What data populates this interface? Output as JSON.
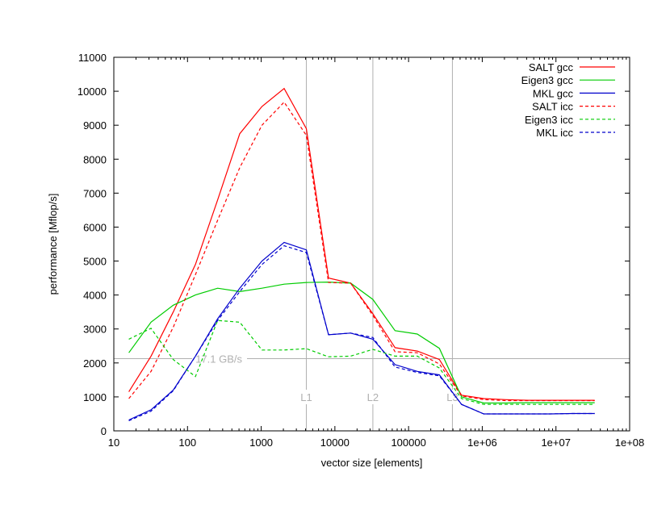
{
  "chart_data": {
    "type": "line",
    "title": "",
    "xlabel": "vector size [elements]",
    "ylabel": "performance [Mflop/s]",
    "x_scale": "log",
    "xlim": [
      10,
      100000000
    ],
    "ylim": [
      0,
      11000
    ],
    "x_ticks": [
      10,
      100,
      1000,
      10000,
      100000,
      1000000,
      10000000,
      100000000
    ],
    "x_tick_labels": [
      "10",
      "100",
      "1000",
      "10000",
      "100000",
      "1e+06",
      "1e+07",
      "1e+08"
    ],
    "y_ticks": [
      0,
      1000,
      2000,
      3000,
      4000,
      5000,
      6000,
      7000,
      8000,
      9000,
      10000,
      11000
    ],
    "y_tick_labels": [
      "0",
      "1000",
      "2000",
      "3000",
      "4000",
      "5000",
      "6000",
      "7000",
      "8000",
      "9000",
      "10000",
      "11000"
    ],
    "legend_position": "top-right",
    "grid": false,
    "reference_lines": {
      "vertical": [
        {
          "x": 4096,
          "label": "L1"
        },
        {
          "x": 32768,
          "label": "L2"
        },
        {
          "x": 393216,
          "label": "L3"
        }
      ],
      "horizontal": [
        {
          "y": 2125,
          "label": "17.1 GB/s"
        }
      ]
    },
    "series": [
      {
        "name": "SALT gcc",
        "color": "#ff0000",
        "dash": "solid",
        "x": [
          16,
          32,
          64,
          128,
          256,
          512,
          1024,
          2048,
          4096,
          8192,
          16384,
          32768,
          65536,
          131072,
          262144,
          524288,
          1048576,
          2097152,
          4194304,
          8388608,
          16777216,
          33554432
        ],
        "y": [
          1150,
          2200,
          3500,
          4900,
          6800,
          8750,
          9550,
          10080,
          8900,
          4500,
          4350,
          3450,
          2450,
          2350,
          2100,
          1050,
          950,
          920,
          900,
          900,
          900,
          900
        ]
      },
      {
        "name": "Eigen3 gcc",
        "color": "#00cc00",
        "dash": "solid",
        "x": [
          16,
          32,
          64,
          128,
          256,
          512,
          1024,
          2048,
          4096,
          8192,
          16384,
          32768,
          65536,
          131072,
          262144,
          524288,
          1048576,
          2097152,
          4194304,
          8388608,
          16777216,
          33554432
        ],
        "y": [
          2300,
          3200,
          3700,
          4000,
          4200,
          4100,
          4200,
          4320,
          4370,
          4380,
          4350,
          3870,
          2950,
          2850,
          2430,
          1000,
          820,
          820,
          830,
          830,
          830,
          830
        ]
      },
      {
        "name": "MKL gcc",
        "color": "#0000cc",
        "dash": "solid",
        "x": [
          16,
          32,
          64,
          128,
          256,
          512,
          1024,
          2048,
          4096,
          8192,
          16384,
          32768,
          65536,
          131072,
          262144,
          524288,
          1048576,
          2097152,
          4194304,
          8388608,
          16777216,
          33554432
        ],
        "y": [
          320,
          620,
          1200,
          2200,
          3300,
          4200,
          5000,
          5550,
          5330,
          2830,
          2880,
          2700,
          1950,
          1750,
          1650,
          780,
          500,
          500,
          500,
          500,
          510,
          510
        ]
      },
      {
        "name": "SALT icc",
        "color": "#ff0000",
        "dash": "dashed",
        "x": [
          16,
          32,
          64,
          128,
          256,
          512,
          1024,
          2048,
          4096,
          8192,
          16384,
          32768,
          65536,
          131072,
          262144,
          524288,
          1048576,
          2097152,
          4194304,
          8388608,
          16777216,
          33554432
        ],
        "y": [
          950,
          1750,
          3050,
          4600,
          6200,
          7750,
          9000,
          9680,
          8700,
          4370,
          4350,
          3400,
          2330,
          2300,
          1970,
          1030,
          920,
          890,
          890,
          890,
          890,
          890
        ]
      },
      {
        "name": "Eigen3 icc",
        "color": "#00cc00",
        "dash": "dashed",
        "x": [
          16,
          32,
          64,
          128,
          256,
          512,
          1024,
          2048,
          4096,
          8192,
          16384,
          32768,
          65536,
          131072,
          262144,
          524288,
          1048576,
          2097152,
          4194304,
          8388608,
          16777216,
          33554432
        ],
        "y": [
          2700,
          3020,
          2100,
          1600,
          3250,
          3200,
          2380,
          2380,
          2420,
          2180,
          2200,
          2400,
          2200,
          2200,
          1850,
          950,
          780,
          780,
          780,
          780,
          780,
          780
        ]
      },
      {
        "name": "MKL icc",
        "color": "#0000cc",
        "dash": "dashed",
        "x": [
          16,
          32,
          64,
          128,
          256,
          512,
          1024,
          2048,
          4096,
          8192,
          16384,
          32768,
          65536,
          131072,
          262144,
          524288,
          1048576,
          2097152,
          4194304,
          8388608,
          16777216,
          33554432
        ],
        "y": [
          300,
          580,
          1180,
          2200,
          3250,
          4100,
          4900,
          5450,
          5250,
          2830,
          2880,
          2750,
          1880,
          1720,
          1620,
          780,
          500,
          500,
          500,
          500,
          510,
          510
        ]
      }
    ]
  }
}
